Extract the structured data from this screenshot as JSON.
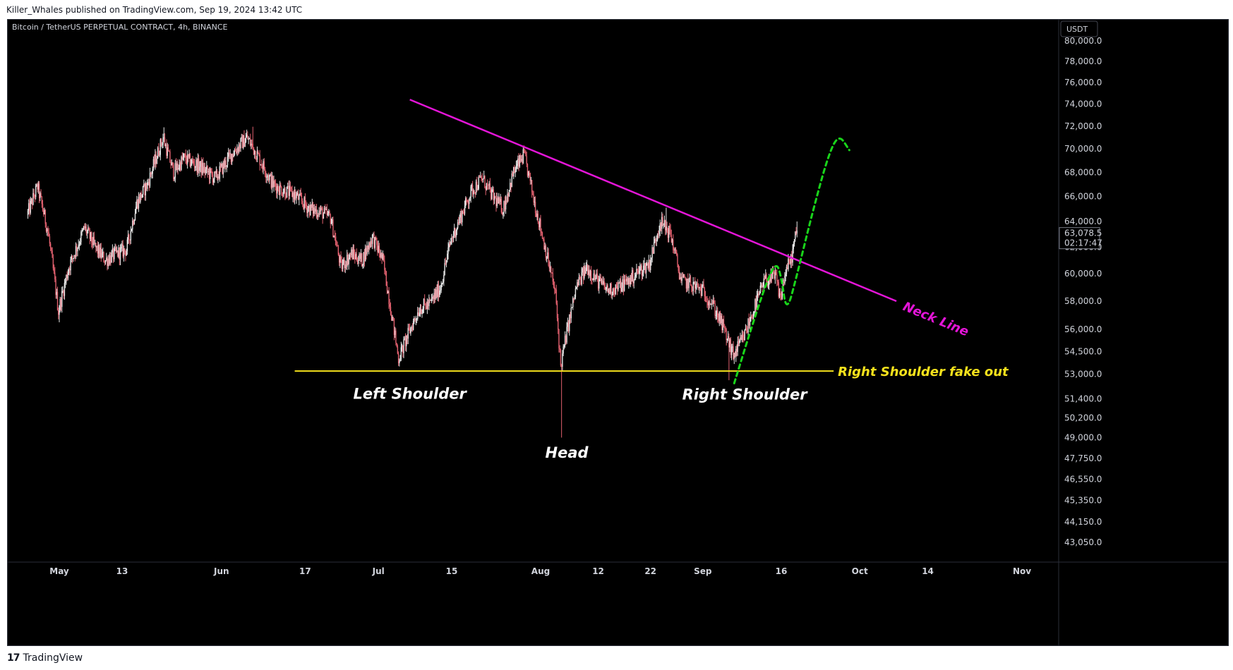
{
  "publisher_note": "Killer_Whales published on TradingView.com, Sep 19, 2024 13:42 UTC",
  "footer": {
    "logo_mark": "17",
    "logo_text": "TradingView"
  },
  "colors": {
    "background": "#000000",
    "up": "#e8e8e8",
    "down": "#e0606e",
    "neckline": "#e415d8",
    "support": "#f6e21c",
    "arrow": "#19d41a",
    "text": "#ffffff"
  },
  "chart_data": {
    "type": "candlestick",
    "title": "Bitcoin / TetherUS PERPETUAL CONTRACT, 4h, BINANCE",
    "currency": "USDT",
    "y_axis": {
      "scale": "log",
      "range": [
        41500,
        82000
      ],
      "ticks": [
        "80,000.0",
        "78,000.0",
        "76,000.0",
        "74,000.0",
        "72,000.0",
        "70,000.0",
        "68,000.0",
        "66,000.0",
        "64,000.0",
        "62,000.0",
        "60,000.0",
        "58,000.0",
        "56,000.0",
        "54,500.0",
        "53,000.0",
        "51,400.0",
        "50,200.0",
        "49,000.0",
        "47,750.0",
        "46,550.0",
        "45,350.0",
        "44,150.0",
        "43,050.0"
      ]
    },
    "x_axis": {
      "ticks": [
        {
          "label": "May",
          "date": "2024-05-01"
        },
        {
          "label": "13",
          "date": "2024-05-13"
        },
        {
          "label": "Jun",
          "date": "2024-06-01"
        },
        {
          "label": "17",
          "date": "2024-06-17"
        },
        {
          "label": "Jul",
          "date": "2024-07-01"
        },
        {
          "label": "15",
          "date": "2024-07-15"
        },
        {
          "label": "Aug",
          "date": "2024-08-01"
        },
        {
          "label": "12",
          "date": "2024-08-12"
        },
        {
          "label": "22",
          "date": "2024-08-22"
        },
        {
          "label": "Sep",
          "date": "2024-09-01"
        },
        {
          "label": "16",
          "date": "2024-09-16"
        },
        {
          "label": "Oct",
          "date": "2024-10-01"
        },
        {
          "label": "14",
          "date": "2024-10-14"
        },
        {
          "label": "Nov",
          "date": "2024-11-01"
        }
      ]
    },
    "last_price": {
      "value": "63,078.5",
      "countdown": "02:17:47"
    },
    "price_path": [
      [
        "2024-04-25",
        64500
      ],
      [
        "2024-04-27",
        66800
      ],
      [
        "2024-04-29",
        63200
      ],
      [
        "2024-05-01",
        57300
      ],
      [
        "2024-05-03",
        60500
      ],
      [
        "2024-05-06",
        63500
      ],
      [
        "2024-05-08",
        62000
      ],
      [
        "2024-05-10",
        61000
      ],
      [
        "2024-05-12",
        61500
      ],
      [
        "2024-05-14",
        61800
      ],
      [
        "2024-05-16",
        65500
      ],
      [
        "2024-05-18",
        67000
      ],
      [
        "2024-05-21",
        71000
      ],
      [
        "2024-05-23",
        68000
      ],
      [
        "2024-05-25",
        69200
      ],
      [
        "2024-05-28",
        68500
      ],
      [
        "2024-05-31",
        67500
      ],
      [
        "2024-06-03",
        69500
      ],
      [
        "2024-06-06",
        71000
      ],
      [
        "2024-06-08",
        69500
      ],
      [
        "2024-06-11",
        67000
      ],
      [
        "2024-06-13",
        66500
      ],
      [
        "2024-06-15",
        66200
      ],
      [
        "2024-06-18",
        65000
      ],
      [
        "2024-06-20",
        64800
      ],
      [
        "2024-06-22",
        64300
      ],
      [
        "2024-06-24",
        60500
      ],
      [
        "2024-06-26",
        61500
      ],
      [
        "2024-06-28",
        61000
      ],
      [
        "2024-06-30",
        62800
      ],
      [
        "2024-07-02",
        61000
      ],
      [
        "2024-07-05",
        54000
      ],
      [
        "2024-07-07",
        55800
      ],
      [
        "2024-07-09",
        57500
      ],
      [
        "2024-07-11",
        57800
      ],
      [
        "2024-07-13",
        59000
      ],
      [
        "2024-07-15",
        62500
      ],
      [
        "2024-07-17",
        64500
      ],
      [
        "2024-07-19",
        66500
      ],
      [
        "2024-07-21",
        67500
      ],
      [
        "2024-07-23",
        66000
      ],
      [
        "2024-07-25",
        65000
      ],
      [
        "2024-07-27",
        68000
      ],
      [
        "2024-07-29",
        69500
      ],
      [
        "2024-07-31",
        65500
      ],
      [
        "2024-08-02",
        62000
      ],
      [
        "2024-08-04",
        58500
      ],
      [
        "2024-08-05",
        53500
      ],
      [
        "2024-08-06",
        55500
      ],
      [
        "2024-08-08",
        59000
      ],
      [
        "2024-08-10",
        60500
      ],
      [
        "2024-08-12",
        59500
      ],
      [
        "2024-08-14",
        58800
      ],
      [
        "2024-08-16",
        59000
      ],
      [
        "2024-08-18",
        59500
      ],
      [
        "2024-08-20",
        60200
      ],
      [
        "2024-08-22",
        60800
      ],
      [
        "2024-08-24",
        64000
      ],
      [
        "2024-08-26",
        63000
      ],
      [
        "2024-08-28",
        59500
      ],
      [
        "2024-08-30",
        59200
      ],
      [
        "2024-09-01",
        58800
      ],
      [
        "2024-09-03",
        57800
      ],
      [
        "2024-09-05",
        56200
      ],
      [
        "2024-09-07",
        54200
      ],
      [
        "2024-09-09",
        55500
      ],
      [
        "2024-09-11",
        57500
      ],
      [
        "2024-09-13",
        59500
      ],
      [
        "2024-09-15",
        59800
      ],
      [
        "2024-09-16",
        58200
      ],
      [
        "2024-09-17",
        60200
      ],
      [
        "2024-09-18",
        61000
      ],
      [
        "2024-09-19",
        63078
      ]
    ],
    "extremes": [
      {
        "date": "2024-05-01",
        "low": 56500
      },
      {
        "date": "2024-05-21",
        "high": 71900
      },
      {
        "date": "2024-06-07",
        "high": 71950
      },
      {
        "date": "2024-07-05",
        "low": 53500
      },
      {
        "date": "2024-07-29",
        "high": 70000
      },
      {
        "date": "2024-08-05",
        "low": 49000
      },
      {
        "date": "2024-08-25",
        "high": 65100
      },
      {
        "date": "2024-09-06",
        "low": 52600
      },
      {
        "date": "2024-09-19",
        "high": 64000
      }
    ],
    "annotations": {
      "neckline": {
        "label": "Neck Line",
        "points": [
          [
            "2024-07-07",
            74400
          ],
          [
            "2024-10-08",
            58000
          ]
        ]
      },
      "support": {
        "label": "Right Shoulder fake out",
        "value": 53200,
        "from": "2024-06-15",
        "to": "2024-09-26"
      },
      "labels": [
        {
          "text": "Left Shoulder",
          "date": "2024-07-07",
          "price": 51400
        },
        {
          "text": "Head",
          "date": "2024-08-06",
          "price": 47800
        },
        {
          "text": "Right Shoulder",
          "date": "2024-09-09",
          "price": 51350
        }
      ],
      "projection": [
        [
          "2024-09-07",
          52400
        ],
        [
          "2024-09-10",
          55800
        ],
        [
          "2024-09-13",
          59200
        ],
        [
          "2024-09-15",
          60900
        ],
        [
          "2024-09-16",
          59800
        ],
        [
          "2024-09-17",
          57100
        ],
        [
          "2024-09-19",
          59900
        ],
        [
          "2024-09-22",
          64800
        ],
        [
          "2024-09-25",
          69500
        ],
        [
          "2024-09-27",
          71300
        ],
        [
          "2024-09-29",
          69900
        ]
      ]
    }
  }
}
